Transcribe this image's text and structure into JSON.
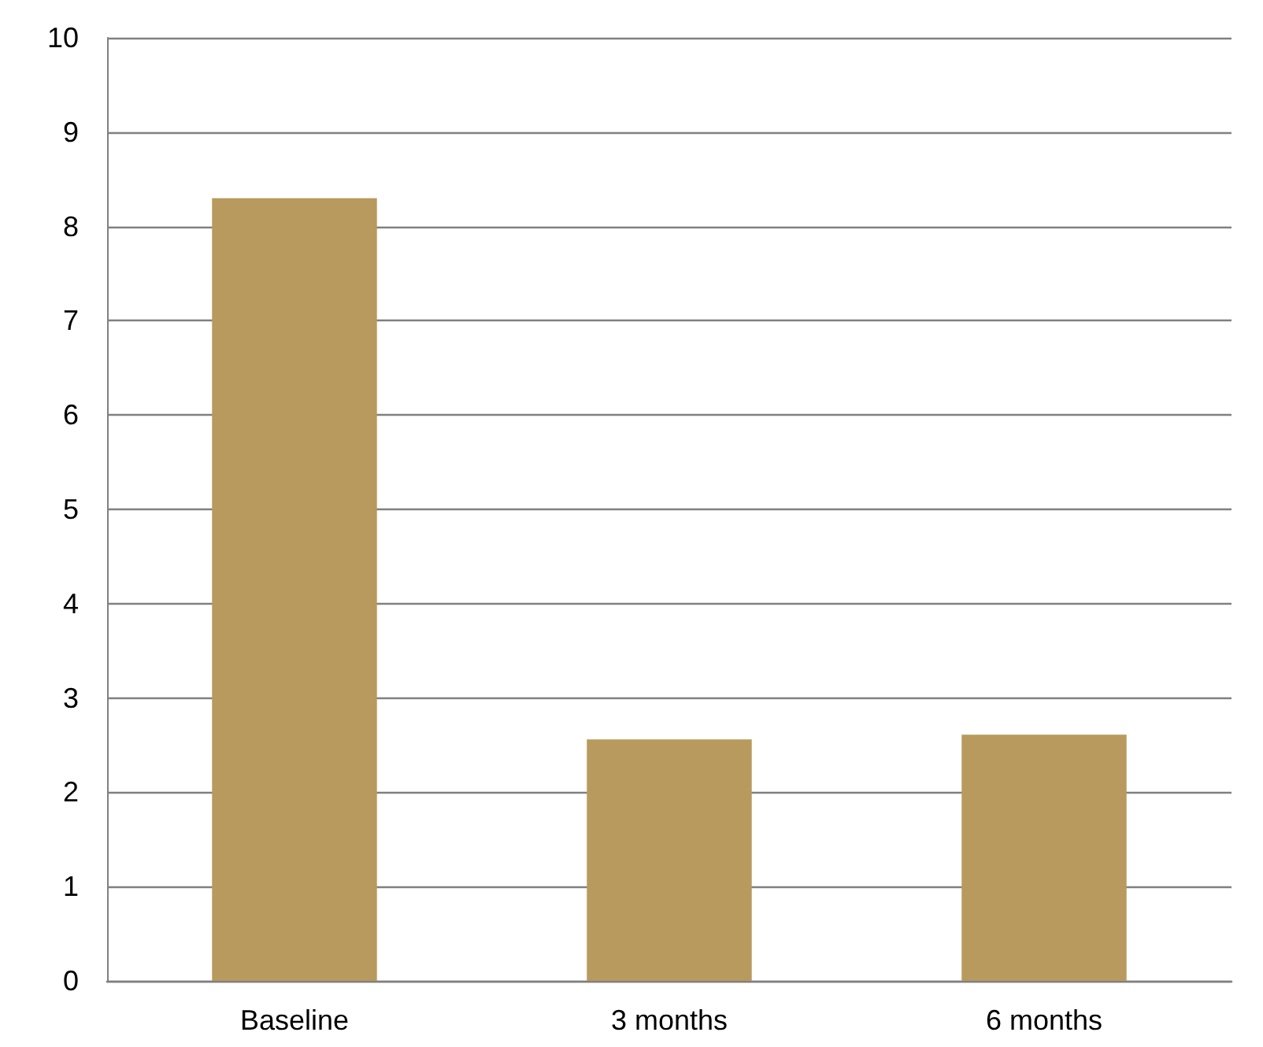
{
  "chart_data": {
    "type": "bar",
    "categories": [
      "Baseline",
      "3 months",
      "6 months"
    ],
    "values": [
      8.3,
      2.56,
      2.61
    ],
    "color": "#b89a5e",
    "ylim": [
      0,
      10
    ],
    "yticks": [
      0,
      1,
      2,
      3,
      4,
      5,
      6,
      7,
      8,
      9,
      10
    ],
    "grid": true
  }
}
